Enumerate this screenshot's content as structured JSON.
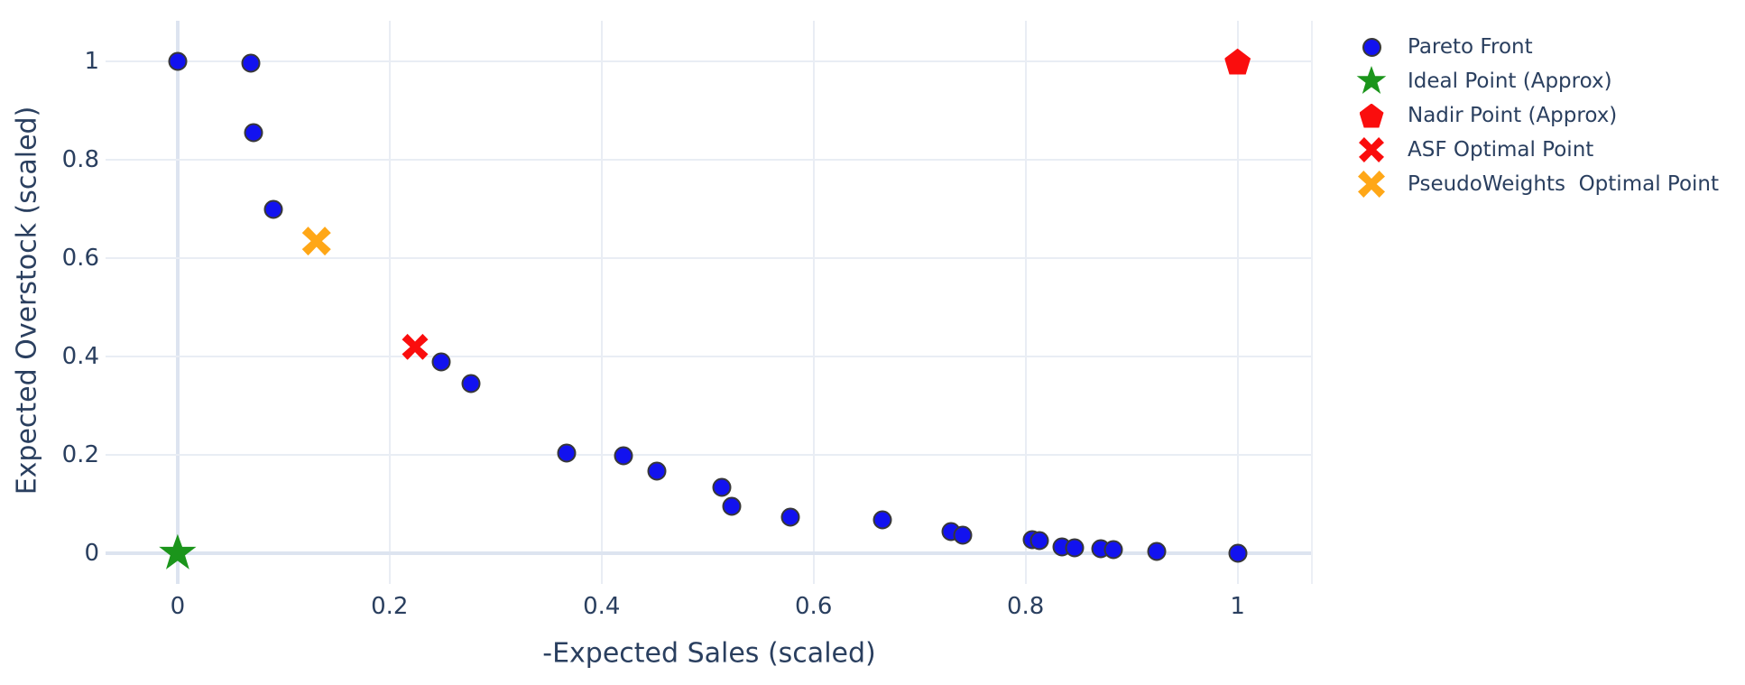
{
  "chart_data": {
    "type": "scatter",
    "title": "",
    "xlabel": "-Expected Sales (scaled)",
    "ylabel": "Expected Overstock (scaled)",
    "xlim": [
      -0.068,
      1.071
    ],
    "ylim": [
      -0.062,
      1.083
    ],
    "xticks": [
      0,
      0.2,
      0.4,
      0.6,
      0.8,
      1
    ],
    "xtick_labels": [
      "0",
      "0.2",
      "0.4",
      "0.6",
      "0.8",
      "1"
    ],
    "yticks": [
      0,
      0.2,
      0.4,
      0.6,
      0.8,
      1
    ],
    "ytick_labels": [
      "0",
      "0.2",
      "0.4",
      "0.6",
      "0.8",
      "1"
    ],
    "grid": true,
    "legend_position": "outside-top-right",
    "series": [
      {
        "name": "Pareto Front",
        "marker": "circle",
        "color": "#1212ef",
        "edge_color": "#383838",
        "size": 21,
        "points": [
          [
            0.0,
            1.0
          ],
          [
            0.069,
            0.997
          ],
          [
            0.072,
            0.855
          ],
          [
            0.09,
            0.7
          ],
          [
            0.249,
            0.389
          ],
          [
            0.277,
            0.346
          ],
          [
            0.367,
            0.204
          ],
          [
            0.421,
            0.199
          ],
          [
            0.452,
            0.168
          ],
          [
            0.513,
            0.134
          ],
          [
            0.523,
            0.096
          ],
          [
            0.578,
            0.073
          ],
          [
            0.665,
            0.068
          ],
          [
            0.73,
            0.045
          ],
          [
            0.741,
            0.037
          ],
          [
            0.806,
            0.028
          ],
          [
            0.813,
            0.026
          ],
          [
            0.834,
            0.013
          ],
          [
            0.846,
            0.011
          ],
          [
            0.871,
            0.009
          ],
          [
            0.883,
            0.007
          ],
          [
            0.924,
            0.004
          ],
          [
            1.0,
            0.0
          ]
        ]
      },
      {
        "name": "Ideal Point (Approx)",
        "marker": "star",
        "color": "#1b951b",
        "size": 43,
        "points": [
          [
            0.0,
            0.0
          ]
        ]
      },
      {
        "name": "Nadir Point (Approx)",
        "marker": "pentagon",
        "color": "#fa0d0d",
        "size": 29,
        "points": [
          [
            1.0,
            1.0
          ]
        ]
      },
      {
        "name": "ASF Optimal Point",
        "marker": "x",
        "color": "#fa0d0d",
        "size": 29,
        "points": [
          [
            0.224,
            0.42
          ]
        ]
      },
      {
        "name": "PseudoWeights  Optimal Point",
        "marker": "x",
        "color": "#ffa717",
        "size": 32,
        "points": [
          [
            0.131,
            0.635
          ]
        ]
      }
    ],
    "legend_marker_sizes": [
      21,
      34,
      27,
      28,
      30
    ],
    "colors": {
      "text": "#2a3f5f",
      "grid": "#e9edf4",
      "zeroline": "#dde4f0",
      "background": "#ffffff"
    }
  }
}
